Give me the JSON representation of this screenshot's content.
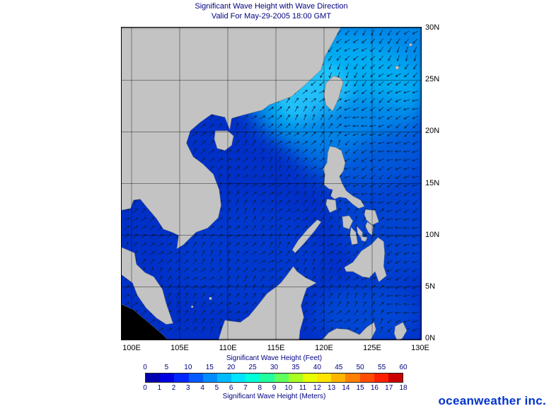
{
  "title": {
    "line1": "Significant Wave Height with Wave Direction",
    "line2": "Valid For May-29-2005 18:00 GMT"
  },
  "map": {
    "x_ticks": [
      "100E",
      "105E",
      "110E",
      "115E",
      "120E",
      "125E",
      "130E"
    ],
    "y_ticks": [
      "30N",
      "25N",
      "20N",
      "15N",
      "10N",
      "5N",
      "0N"
    ],
    "lon_range": [
      100,
      130
    ],
    "lat_range": [
      0,
      30
    ],
    "land_color": "#c3c3c3",
    "ocean_color": "#0030c8",
    "arrow_color": "#0a1f3c",
    "grid_color": "#000000"
  },
  "colorbar": {
    "feet_label": "Significant Wave Height (Feet)",
    "meters_label": "Significant Wave Height (Meters)",
    "feet_ticks": [
      "0",
      "5",
      "10",
      "15",
      "20",
      "25",
      "30",
      "35",
      "40",
      "45",
      "50",
      "55",
      "60"
    ],
    "meter_ticks": [
      "0",
      "1",
      "2",
      "3",
      "4",
      "5",
      "6",
      "7",
      "8",
      "9",
      "10",
      "11",
      "12",
      "13",
      "14",
      "15",
      "16",
      "17",
      "18"
    ],
    "colors": [
      "#0000b0",
      "#0000e0",
      "#0026ff",
      "#005aff",
      "#008cff",
      "#00baff",
      "#00e4ff",
      "#00ffd8",
      "#20ffa0",
      "#60ff60",
      "#a8ff20",
      "#e8ff00",
      "#ffe400",
      "#ffb400",
      "#ff8000",
      "#ff4c00",
      "#ff1e00",
      "#cc0000"
    ]
  },
  "branding": {
    "logo": "oceanweather inc."
  }
}
